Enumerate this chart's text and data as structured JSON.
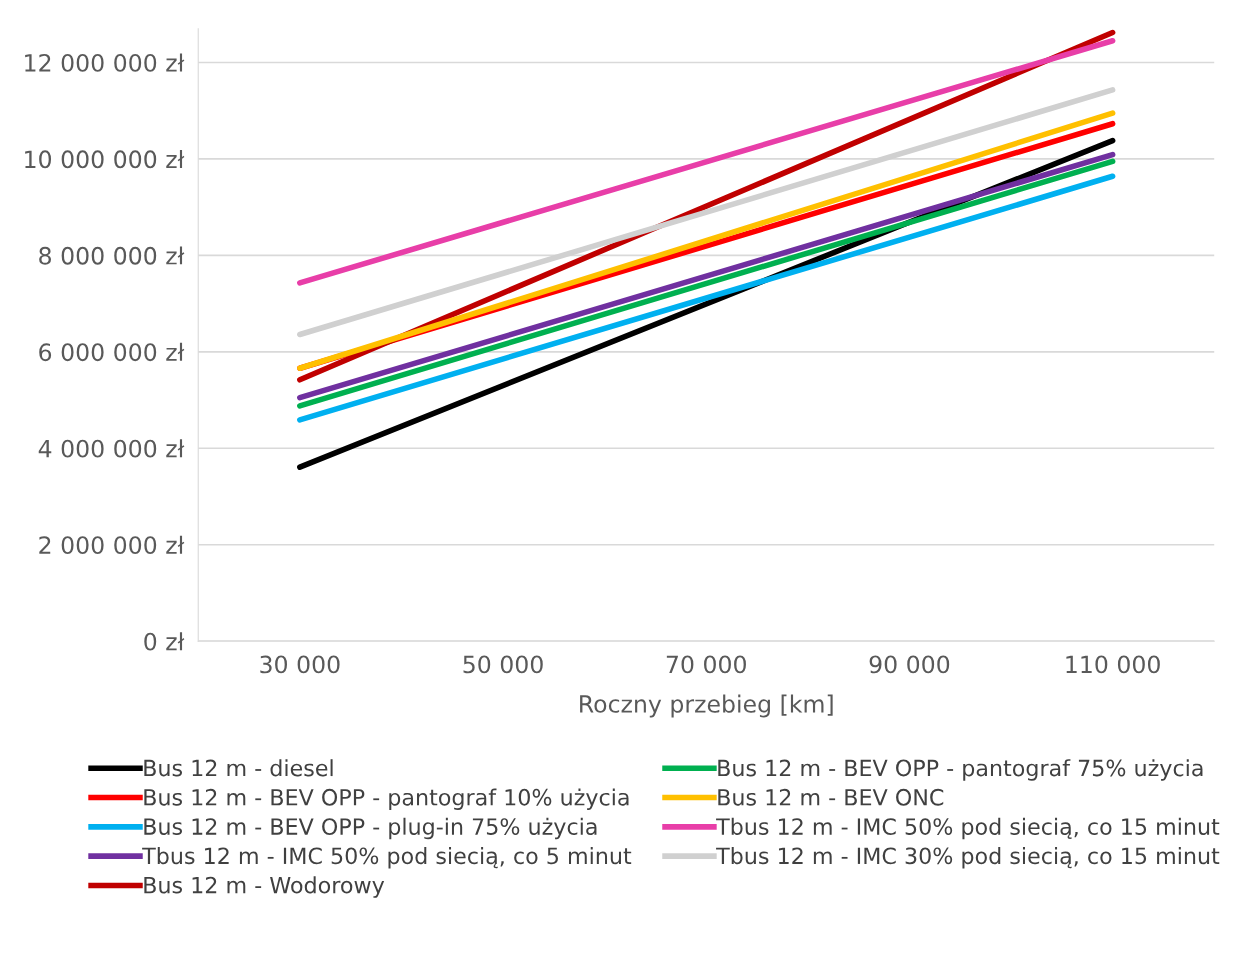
{
  "chart_data": {
    "type": "line",
    "xlabel": "Roczny przebieg [km]",
    "xlim": [
      20000,
      120000
    ],
    "xticks": [
      {
        "value": 30000,
        "label": "30 000"
      },
      {
        "value": 50000,
        "label": "50 000"
      },
      {
        "value": 70000,
        "label": "70 000"
      },
      {
        "value": 90000,
        "label": "90 000"
      },
      {
        "value": 110000,
        "label": "110 000"
      }
    ],
    "ylim": [
      0,
      12700000
    ],
    "yticks": [
      {
        "value": 0,
        "label": "0 zł"
      },
      {
        "value": 2000000,
        "label": "2 000 000 zł"
      },
      {
        "value": 4000000,
        "label": "4 000 000 zł"
      },
      {
        "value": 6000000,
        "label": "6 000 000 zł"
      },
      {
        "value": 8000000,
        "label": "8 000 000 zł"
      },
      {
        "value": 10000000,
        "label": "10 000 000 zł"
      },
      {
        "value": 12000000,
        "label": "12 000 000 zł"
      }
    ],
    "x": [
      30000,
      110000
    ],
    "grid": "y",
    "legend": "bottom",
    "marker": "none",
    "line_style": "solid",
    "series": [
      {
        "name": "Bus 12 m - diesel",
        "color": "#000000",
        "values": [
          3610000,
          10380000
        ]
      },
      {
        "name": "Bus 12 m - BEV OPP - pantograf 10% użycia",
        "color": "#ff0000",
        "values": [
          5660000,
          10730000
        ]
      },
      {
        "name": "Bus 12 m - BEV OPP - plug-in 75% użycia",
        "color": "#00b0f0",
        "values": [
          4590000,
          9640000
        ]
      },
      {
        "name": "Tbus 12 m - IMC 50% pod siecią, co 5 minut",
        "color": "#7030a0",
        "values": [
          5050000,
          10090000
        ]
      },
      {
        "name": "Bus 12 m - Wodorowy",
        "color": "#c00000",
        "values": [
          5420000,
          12620000
        ]
      },
      {
        "name": "Bus 12 m - BEV OPP - pantograf 75% użycia",
        "color": "#00b050",
        "values": [
          4880000,
          9950000
        ]
      },
      {
        "name": "Bus 12 m - BEV ONC",
        "color": "#ffc000",
        "values": [
          5660000,
          10950000
        ]
      },
      {
        "name": "Tbus 12 m - IMC 50% pod siecią, co 15 minut",
        "color": "#e83ea8",
        "values": [
          7430000,
          12450000
        ]
      },
      {
        "name": "Tbus 12 m - IMC 30% pod siecią, co 15 minut",
        "color": "#d0d0d0",
        "values": [
          6360000,
          11430000
        ]
      }
    ]
  }
}
